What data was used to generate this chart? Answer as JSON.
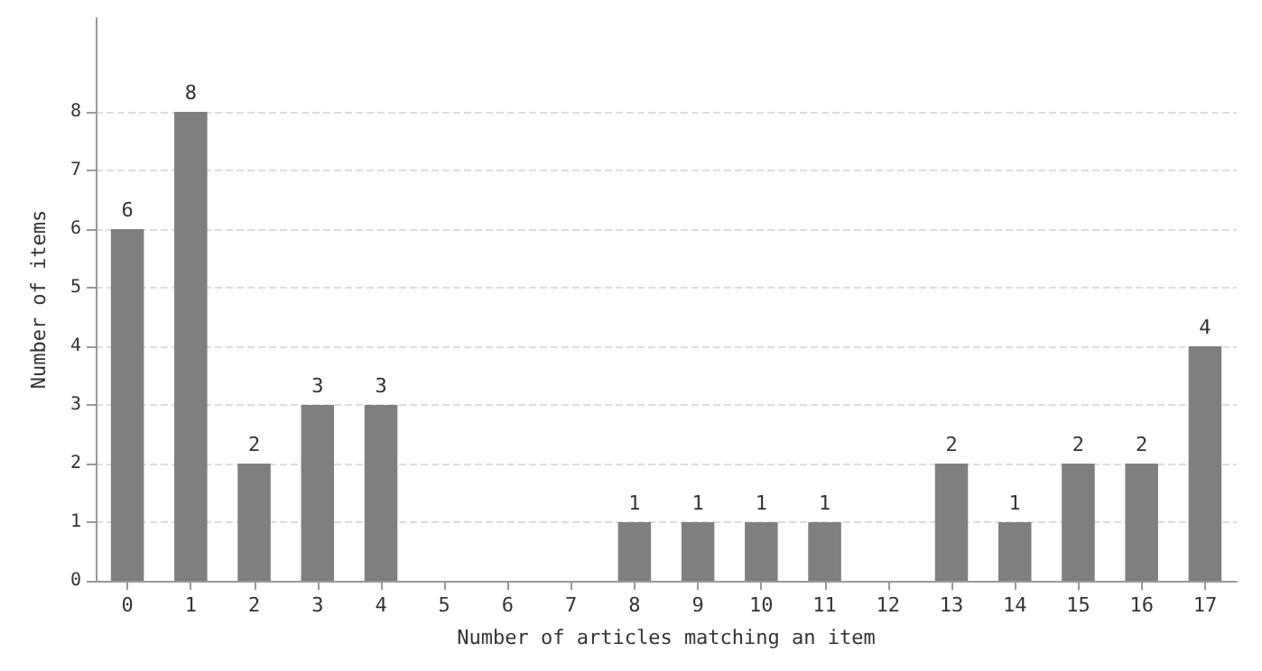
{
  "chart_data": {
    "type": "bar",
    "xlabel": "Number of articles matching an item",
    "ylabel": "Number of items",
    "categories": [
      "0",
      "1",
      "2",
      "3",
      "4",
      "5",
      "6",
      "7",
      "8",
      "9",
      "10",
      "11",
      "12",
      "13",
      "14",
      "15",
      "16",
      "17"
    ],
    "values": [
      6,
      8,
      2,
      3,
      3,
      0,
      0,
      0,
      1,
      1,
      1,
      1,
      0,
      2,
      1,
      2,
      2,
      4
    ],
    "value_labels": [
      "6",
      "8",
      "2",
      "3",
      "3",
      null,
      null,
      null,
      "1",
      "1",
      "1",
      "1",
      null,
      "2",
      "1",
      "2",
      "2",
      "4"
    ],
    "color": "#7f7f7f",
    "ylim": [
      0,
      9.6
    ],
    "yticks": [
      0,
      1,
      2,
      3,
      4,
      5,
      6,
      7,
      8
    ],
    "grid": "y"
  }
}
